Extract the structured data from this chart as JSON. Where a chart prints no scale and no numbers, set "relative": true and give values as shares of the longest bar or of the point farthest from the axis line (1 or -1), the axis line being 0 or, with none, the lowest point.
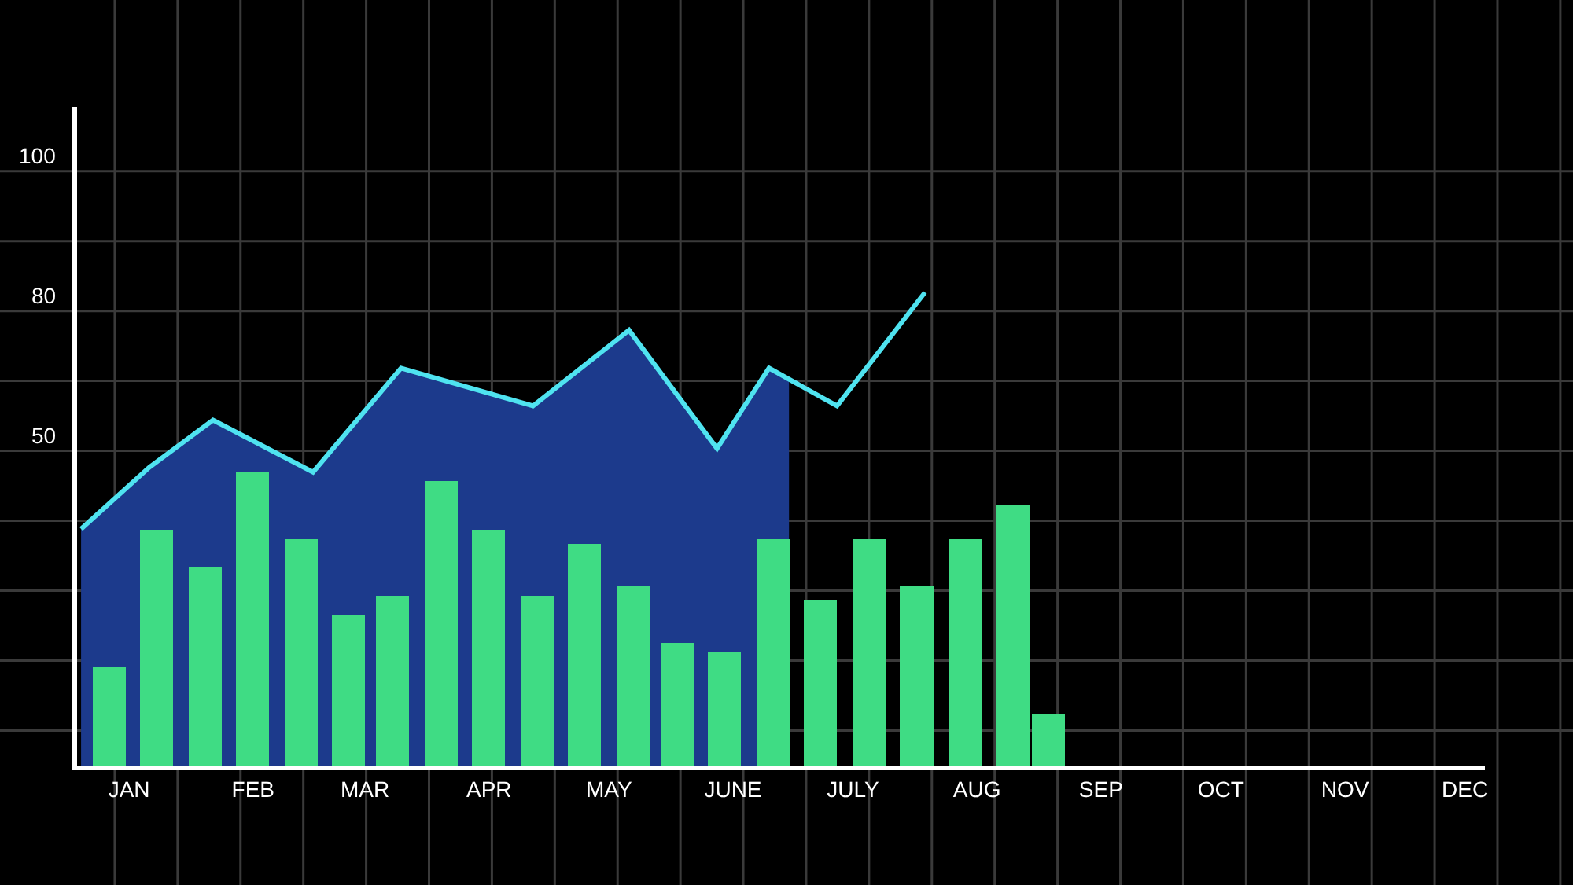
{
  "chart_data": {
    "type": "bar",
    "relative": true,
    "grid": true,
    "xlim": [
      "--01-03",
      "--12-21"
    ],
    "xticks": [
      {
        "value": "--01-16",
        "label": "JAN"
      },
      {
        "value": "--02-16",
        "label": "FEB"
      },
      {
        "value": "--03-16",
        "label": "MAR"
      },
      {
        "value": "--04-16",
        "label": "APR"
      },
      {
        "value": "--05-16",
        "label": "MAY"
      },
      {
        "value": "--06-16",
        "label": "JUNE"
      },
      {
        "value": "--07-16",
        "label": "JULY"
      },
      {
        "value": "--08-16",
        "label": "AUG"
      },
      {
        "value": "--09-16",
        "label": "SEP"
      },
      {
        "value": "--10-16",
        "label": "OCT"
      },
      {
        "value": "--11-16",
        "label": "NOV"
      },
      {
        "value": "--12-16",
        "label": "DEC"
      }
    ],
    "annotations": [
      "100",
      "80",
      "50"
    ],
    "series": [
      {
        "type": "area",
        "color": "#1c3a8c",
        "x": [
          "--01-04",
          "--01-21",
          "--02-06",
          "--03-03",
          "--03-25",
          "--04-27",
          "--05-21",
          "--06-12",
          "--06-25",
          "--06-30"
        ],
        "values": [
          0.5,
          0.63,
          0.73,
          0.62,
          0.84,
          0.76,
          0.92,
          0.67,
          0.84,
          0.82
        ]
      },
      {
        "color": "#3fdc84",
        "x": [
          "--01-11",
          "--01-23",
          "--02-04",
          "--02-16",
          "--02-28",
          "--03-12",
          "--03-23",
          "--04-04",
          "--04-16",
          "--04-28",
          "--05-10",
          "--05-22",
          "--06-02",
          "--06-14",
          "--06-26",
          "--07-08",
          "--07-20",
          "--08-01",
          "--08-13",
          "--08-25",
          "--09-03"
        ],
        "values": [
          0.21,
          0.5,
          0.42,
          0.62,
          0.48,
          0.32,
          0.36,
          0.6,
          0.5,
          0.36,
          0.47,
          0.38,
          0.26,
          0.24,
          0.48,
          0.35,
          0.48,
          0.38,
          0.48,
          0.55,
          0.11
        ]
      },
      {
        "type": "line",
        "color": "#4fe3f0",
        "x": [
          "--01-04",
          "--01-21",
          "--02-06",
          "--03-03",
          "--03-25",
          "--04-27",
          "--05-21",
          "--06-12",
          "--06-25",
          "--07-12",
          "--08-03"
        ],
        "values": [
          0.5,
          0.63,
          0.73,
          0.62,
          0.84,
          0.76,
          0.92,
          0.67,
          0.84,
          0.76,
          1.0
        ]
      }
    ]
  }
}
